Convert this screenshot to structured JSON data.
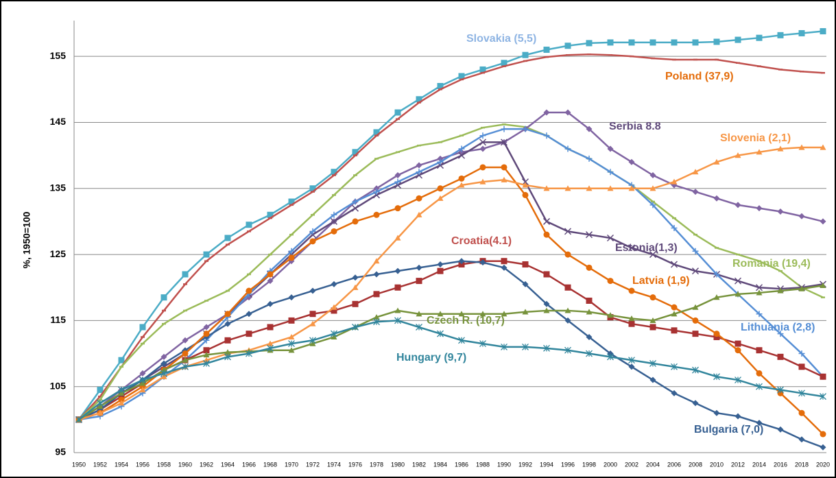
{
  "chart_data": {
    "type": "line",
    "y_label": "%, 1950=100",
    "categories": [
      "1950",
      "1952",
      "1954",
      "1956",
      "1958",
      "1960",
      "1962",
      "1964",
      "1966",
      "1968",
      "1970",
      "1972",
      "1974",
      "1976",
      "1978",
      "1980",
      "1982",
      "1984",
      "1986",
      "1988",
      "1990",
      "1992",
      "1994",
      "1996",
      "1998",
      "2000",
      "2002",
      "2004",
      "2006",
      "2008",
      "2010",
      "2012",
      "2014",
      "2016",
      "2018",
      "2020"
    ],
    "ylim": [
      95,
      160
    ],
    "yticks": [
      95,
      105,
      115,
      125,
      135,
      145,
      155
    ],
    "grid": true,
    "series": [
      {
        "name": "Slovakia (5,5)",
        "color": "#4BACC6",
        "label_color": "#8EB4E3",
        "marker": "square",
        "values": [
          100,
          104.5,
          109,
          114,
          118.5,
          122,
          125,
          127.5,
          129.5,
          131,
          133,
          135,
          137.5,
          140.5,
          143.5,
          146.5,
          148.5,
          150.5,
          152,
          153,
          154,
          155.2,
          156,
          156.6,
          157,
          157.1,
          157.1,
          157.1,
          157.1,
          157.1,
          157.2,
          157.5,
          157.8,
          158.2,
          158.5,
          158.8
        ]
      },
      {
        "name": "Poland (37,9)",
        "color": "#C0504D",
        "label_color": "#E46C0A",
        "marker": "dash",
        "values": [
          100,
          103.5,
          108,
          112.5,
          116.5,
          120.5,
          124,
          126.5,
          128.5,
          130.5,
          132.5,
          134.5,
          137,
          140,
          143,
          145.5,
          148,
          150,
          151.5,
          152.5,
          153.5,
          154.3,
          154.9,
          155.2,
          155.3,
          155.2,
          155,
          154.7,
          154.5,
          154.5,
          154.5,
          154,
          153.5,
          153,
          152.7,
          152.5
        ]
      },
      {
        "name": "Romania (19,4)",
        "color": "#9BBB59",
        "label_color": "#9BBB59",
        "marker": "dash",
        "values": [
          100,
          103,
          108,
          111.5,
          114.5,
          116.5,
          118,
          119.5,
          122,
          125,
          128,
          131,
          134,
          137,
          139.5,
          140.5,
          141.5,
          142,
          143,
          144.2,
          144.7,
          144.3,
          143,
          141,
          139.5,
          137.5,
          135.5,
          133,
          130.5,
          128,
          126,
          125,
          124,
          122.5,
          120,
          118.5
        ]
      },
      {
        "name": "Serbia  8.8",
        "color": "#8064A2",
        "label_color": "#5F497A",
        "marker": "diamond",
        "values": [
          100,
          102,
          104.5,
          107,
          109.5,
          112,
          114,
          116,
          118.5,
          121,
          124,
          127,
          130,
          133,
          135,
          137,
          138.5,
          139.5,
          140.5,
          141,
          142,
          144,
          146.5,
          146.5,
          144,
          141,
          139,
          137,
          135.5,
          134.5,
          133.5,
          132.5,
          132,
          131.5,
          130.8,
          130
        ]
      },
      {
        "name": "Estonia(1,3)",
        "color": "#5F497A",
        "label_color": "#5F497A",
        "marker": "x",
        "values": [
          100,
          101.5,
          104,
          106,
          108,
          110,
          113,
          116,
          119,
          122,
          125,
          128,
          130,
          132,
          134,
          135.5,
          137,
          138.5,
          140,
          142,
          142,
          136,
          130,
          128.5,
          128,
          127.5,
          126,
          125,
          123.5,
          122.5,
          122,
          121,
          120,
          119.8,
          120,
          120.5
        ]
      },
      {
        "name": "Lithuania (2,8)",
        "color": "#558ED5",
        "label_color": "#558ED5",
        "marker": "plus",
        "values": [
          100,
          100.5,
          102,
          104,
          106.5,
          109,
          112,
          115.5,
          119,
          122.5,
          125.5,
          128.5,
          131,
          133,
          134.5,
          136,
          137.5,
          139,
          141,
          143,
          144,
          144,
          143,
          141,
          139.5,
          137.5,
          135.5,
          132.5,
          129,
          125.5,
          122,
          119,
          116,
          113,
          110,
          106.5
        ]
      },
      {
        "name": "Croatia(4.1)",
        "color": "#A83232",
        "label_color": "#C0504D",
        "marker": "square",
        "values": [
          100,
          101.5,
          103.5,
          105.5,
          107.5,
          109,
          110.5,
          112,
          113,
          114,
          115,
          116,
          116.5,
          117.5,
          119,
          120,
          121,
          122.5,
          123.5,
          124,
          124,
          123.5,
          122,
          120,
          118,
          115.5,
          114.5,
          114,
          113.5,
          113,
          112.5,
          111.5,
          110.5,
          109.5,
          108,
          106.5
        ]
      },
      {
        "name": "Bulgaria (7,0)",
        "color": "#376092",
        "label_color": "#376092",
        "marker": "diamond",
        "values": [
          100,
          101.5,
          104,
          106,
          108.5,
          110.5,
          112.5,
          114.5,
          116,
          117.5,
          118.5,
          119.5,
          120.5,
          121.5,
          122,
          122.5,
          123,
          123.5,
          124,
          123.8,
          123,
          120.5,
          117.5,
          115,
          112.5,
          110,
          108,
          106,
          104,
          102.5,
          101,
          100.5,
          99.5,
          98.5,
          97,
          95.8
        ]
      },
      {
        "name": "Latvia (1,9)",
        "color": "#E46C0A",
        "label_color": "#E46C0A",
        "marker": "circle",
        "values": [
          100,
          101,
          103,
          105,
          107.5,
          110,
          113,
          116,
          119.5,
          122,
          124.5,
          127,
          128.5,
          130,
          131,
          132,
          133.5,
          135,
          136.5,
          138.2,
          138.2,
          134,
          128,
          125,
          123,
          121,
          119.5,
          118.5,
          117,
          115,
          113,
          110.5,
          107,
          104,
          101,
          97.8
        ]
      },
      {
        "name": "Slovenia (2,1)",
        "color": "#F79646",
        "label_color": "#F79646",
        "marker": "triangle",
        "values": [
          100,
          101,
          102.5,
          104.5,
          106.5,
          108,
          109,
          110,
          110.5,
          111.5,
          112.5,
          114.5,
          117,
          120,
          124,
          127.5,
          131,
          133.5,
          135.5,
          136,
          136.3,
          135.5,
          135,
          135,
          135,
          135,
          135,
          135,
          136,
          137.5,
          139,
          140,
          140.5,
          141,
          141.2,
          141.2
        ]
      },
      {
        "name": "Czech R. (10,7)",
        "color": "#77933C",
        "label_color": "#77933C",
        "marker": "triangle",
        "values": [
          100,
          102,
          104,
          105.5,
          107.5,
          109,
          109.8,
          110.2,
          110.3,
          110.5,
          110.5,
          111.5,
          112.5,
          114,
          115.5,
          116.5,
          116,
          116,
          116,
          116,
          116,
          116.3,
          116.5,
          116.5,
          116.3,
          115.8,
          115.3,
          115,
          116,
          117,
          118.5,
          119,
          119.2,
          119.5,
          119.8,
          120.3
        ]
      },
      {
        "name": "Hungary (9,7)",
        "color": "#31859C",
        "label_color": "#31859C",
        "marker": "star",
        "values": [
          100,
          102.5,
          104.5,
          106,
          107,
          108,
          108.5,
          109.5,
          110,
          110.8,
          111.5,
          112,
          113,
          114,
          114.8,
          115,
          114,
          113,
          112,
          111.5,
          111,
          111,
          110.8,
          110.5,
          110,
          109.5,
          109,
          108.5,
          108,
          107.5,
          106.5,
          106,
          105,
          104.5,
          104,
          103.5
        ]
      }
    ]
  }
}
